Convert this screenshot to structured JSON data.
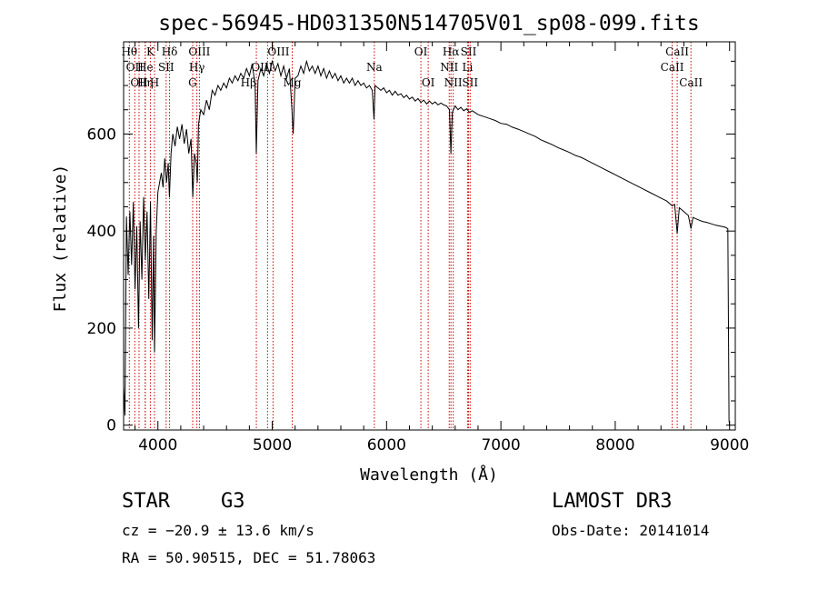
{
  "chart_data": {
    "type": "line",
    "title": "spec-56945-HD031350N514705V01_sp08-099.fits",
    "xlabel": "Wavelength (Å)",
    "ylabel": "Flux (relative)",
    "xlim": [
      3700,
      9050
    ],
    "ylim": [
      -10,
      790
    ],
    "xticks": [
      4000,
      5000,
      6000,
      7000,
      8000,
      9000
    ],
    "yticks": [
      0,
      200,
      400,
      600
    ],
    "x_minor_step": 200,
    "y_minor_step": 50,
    "line_color": "#000000",
    "marker_color": "#cc0000",
    "series": [
      {
        "name": "flux",
        "points": [
          [
            3700,
            80
          ],
          [
            3712,
            20
          ],
          [
            3725,
            430
          ],
          [
            3740,
            310
          ],
          [
            3755,
            440
          ],
          [
            3770,
            330
          ],
          [
            3785,
            460
          ],
          [
            3800,
            280
          ],
          [
            3815,
            410
          ],
          [
            3830,
            200
          ],
          [
            3845,
            420
          ],
          [
            3860,
            300
          ],
          [
            3875,
            470
          ],
          [
            3890,
            340
          ],
          [
            3905,
            440
          ],
          [
            3920,
            260
          ],
          [
            3935,
            460
          ],
          [
            3950,
            175
          ],
          [
            3962,
            390
          ],
          [
            3970,
            150
          ],
          [
            3985,
            400
          ],
          [
            4000,
            480
          ],
          [
            4015,
            500
          ],
          [
            4030,
            520
          ],
          [
            4045,
            490
          ],
          [
            4060,
            550
          ],
          [
            4075,
            500
          ],
          [
            4090,
            540
          ],
          [
            4101,
            470
          ],
          [
            4115,
            560
          ],
          [
            4130,
            600
          ],
          [
            4150,
            575
          ],
          [
            4170,
            615
          ],
          [
            4190,
            590
          ],
          [
            4210,
            620
          ],
          [
            4230,
            580
          ],
          [
            4250,
            610
          ],
          [
            4270,
            560
          ],
          [
            4290,
            590
          ],
          [
            4305,
            470
          ],
          [
            4320,
            560
          ],
          [
            4335,
            540
          ],
          [
            4345,
            500
          ],
          [
            4355,
            620
          ],
          [
            4375,
            650
          ],
          [
            4400,
            640
          ],
          [
            4425,
            670
          ],
          [
            4450,
            650
          ],
          [
            4475,
            690
          ],
          [
            4500,
            680
          ],
          [
            4525,
            700
          ],
          [
            4550,
            690
          ],
          [
            4575,
            705
          ],
          [
            4600,
            695
          ],
          [
            4625,
            715
          ],
          [
            4650,
            705
          ],
          [
            4675,
            720
          ],
          [
            4700,
            710
          ],
          [
            4725,
            725
          ],
          [
            4750,
            715
          ],
          [
            4775,
            735
          ],
          [
            4800,
            720
          ],
          [
            4825,
            745
          ],
          [
            4850,
            700
          ],
          [
            4861,
            560
          ],
          [
            4875,
            710
          ],
          [
            4900,
            735
          ],
          [
            4925,
            720
          ],
          [
            4950,
            745
          ],
          [
            4975,
            725
          ],
          [
            5000,
            750
          ],
          [
            5025,
            730
          ],
          [
            5050,
            745
          ],
          [
            5075,
            720
          ],
          [
            5100,
            740
          ],
          [
            5125,
            715
          ],
          [
            5150,
            735
          ],
          [
            5172,
            650
          ],
          [
            5183,
            600
          ],
          [
            5200,
            715
          ],
          [
            5225,
            720
          ],
          [
            5250,
            740
          ],
          [
            5275,
            725
          ],
          [
            5300,
            750
          ],
          [
            5325,
            730
          ],
          [
            5350,
            740
          ],
          [
            5375,
            725
          ],
          [
            5400,
            740
          ],
          [
            5425,
            720
          ],
          [
            5450,
            735
          ],
          [
            5475,
            715
          ],
          [
            5500,
            730
          ],
          [
            5525,
            715
          ],
          [
            5550,
            725
          ],
          [
            5575,
            710
          ],
          [
            5600,
            720
          ],
          [
            5625,
            705
          ],
          [
            5650,
            715
          ],
          [
            5675,
            705
          ],
          [
            5700,
            715
          ],
          [
            5725,
            700
          ],
          [
            5750,
            710
          ],
          [
            5775,
            700
          ],
          [
            5800,
            705
          ],
          [
            5825,
            695
          ],
          [
            5850,
            700
          ],
          [
            5875,
            690
          ],
          [
            5890,
            630
          ],
          [
            5900,
            700
          ],
          [
            5925,
            695
          ],
          [
            5950,
            690
          ],
          [
            5975,
            695
          ],
          [
            6000,
            685
          ],
          [
            6025,
            690
          ],
          [
            6050,
            680
          ],
          [
            6075,
            688
          ],
          [
            6100,
            680
          ],
          [
            6125,
            683
          ],
          [
            6150,
            675
          ],
          [
            6175,
            680
          ],
          [
            6200,
            672
          ],
          [
            6225,
            676
          ],
          [
            6250,
            668
          ],
          [
            6275,
            673
          ],
          [
            6300,
            665
          ],
          [
            6325,
            670
          ],
          [
            6350,
            662
          ],
          [
            6375,
            668
          ],
          [
            6400,
            662
          ],
          [
            6425,
            666
          ],
          [
            6450,
            660
          ],
          [
            6475,
            664
          ],
          [
            6500,
            660
          ],
          [
            6525,
            658
          ],
          [
            6550,
            650
          ],
          [
            6563,
            560
          ],
          [
            6575,
            645
          ],
          [
            6600,
            658
          ],
          [
            6625,
            650
          ],
          [
            6650,
            655
          ],
          [
            6675,
            648
          ],
          [
            6700,
            652
          ],
          [
            6725,
            645
          ],
          [
            6750,
            648
          ],
          [
            6800,
            640
          ],
          [
            6850,
            636
          ],
          [
            6900,
            632
          ],
          [
            6950,
            628
          ],
          [
            7000,
            622
          ],
          [
            7050,
            620
          ],
          [
            7100,
            614
          ],
          [
            7150,
            610
          ],
          [
            7200,
            605
          ],
          [
            7250,
            600
          ],
          [
            7300,
            595
          ],
          [
            7350,
            588
          ],
          [
            7400,
            583
          ],
          [
            7450,
            578
          ],
          [
            7500,
            572
          ],
          [
            7550,
            567
          ],
          [
            7600,
            562
          ],
          [
            7650,
            556
          ],
          [
            7700,
            552
          ],
          [
            7750,
            546
          ],
          [
            7800,
            540
          ],
          [
            7850,
            534
          ],
          [
            7900,
            528
          ],
          [
            7950,
            522
          ],
          [
            8000,
            516
          ],
          [
            8050,
            510
          ],
          [
            8100,
            504
          ],
          [
            8150,
            498
          ],
          [
            8200,
            492
          ],
          [
            8250,
            486
          ],
          [
            8300,
            480
          ],
          [
            8350,
            474
          ],
          [
            8400,
            468
          ],
          [
            8450,
            462
          ],
          [
            8498,
            452
          ],
          [
            8520,
            455
          ],
          [
            8542,
            395
          ],
          [
            8560,
            448
          ],
          [
            8600,
            440
          ],
          [
            8640,
            432
          ],
          [
            8662,
            405
          ],
          [
            8680,
            428
          ],
          [
            8720,
            424
          ],
          [
            8760,
            420
          ],
          [
            8800,
            418
          ],
          [
            8840,
            415
          ],
          [
            8880,
            412
          ],
          [
            8920,
            410
          ],
          [
            8960,
            408
          ],
          [
            8985,
            405
          ],
          [
            8990,
            200
          ],
          [
            8995,
            10
          ],
          [
            9000,
            0
          ]
        ]
      }
    ],
    "line_markers": [
      {
        "x": 3750,
        "text": "Hθ",
        "row": 1,
        "pos": "center"
      },
      {
        "x": 3798,
        "text": "OII",
        "row": 2,
        "pos": "center"
      },
      {
        "x": 3835,
        "text": "OII",
        "row": 3,
        "pos": "center"
      },
      {
        "x": 3889,
        "text": "He",
        "row": 2,
        "pos": "center"
      },
      {
        "x": 3889,
        "text": "Hη",
        "row": 3,
        "pos": "center"
      },
      {
        "x": 3934,
        "text": "K",
        "row": 1,
        "pos": "center"
      },
      {
        "x": 3970,
        "text": "H",
        "row": 3,
        "pos": "center"
      },
      {
        "x": 4072,
        "text": "SII",
        "row": 2,
        "pos": "center"
      },
      {
        "x": 4102,
        "text": "Hδ",
        "row": 1,
        "pos": "center"
      },
      {
        "x": 4304,
        "text": "G",
        "row": 3,
        "pos": "center"
      },
      {
        "x": 4341,
        "text": "Hγ",
        "row": 2,
        "pos": "center"
      },
      {
        "x": 4363,
        "text": "OIII",
        "row": 1,
        "pos": "center"
      },
      {
        "x": 4861,
        "text": "Hβ",
        "row": 3,
        "pos": "left"
      },
      {
        "x": 4959,
        "text": "OIII",
        "row": 1,
        "pos": "right"
      },
      {
        "x": 5007,
        "text": "OIII",
        "row": 2,
        "pos": "left"
      },
      {
        "x": 5175,
        "text": "Mg",
        "row": 3,
        "pos": "center"
      },
      {
        "x": 5893,
        "text": "Na",
        "row": 2,
        "pos": "center"
      },
      {
        "x": 6300,
        "text": "OI",
        "row": 1,
        "pos": "center"
      },
      {
        "x": 6364,
        "text": "OI",
        "row": 3,
        "pos": "center"
      },
      {
        "x": 6548,
        "text": "NII",
        "row": 2,
        "pos": "center"
      },
      {
        "x": 6563,
        "text": "Hα",
        "row": 1,
        "pos": "center"
      },
      {
        "x": 6583,
        "text": "NII",
        "row": 3,
        "pos": "center"
      },
      {
        "x": 6708,
        "text": "Li",
        "row": 2,
        "pos": "center"
      },
      {
        "x": 6717,
        "text": "SII",
        "row": 1,
        "pos": "center"
      },
      {
        "x": 6731,
        "text": "SII",
        "row": 3,
        "pos": "center"
      },
      {
        "x": 8498,
        "text": "CaII",
        "row": 2,
        "pos": "center"
      },
      {
        "x": 8542,
        "text": "CaII",
        "row": 1,
        "pos": "center"
      },
      {
        "x": 8662,
        "text": "CaII",
        "row": 3,
        "pos": "center"
      }
    ]
  },
  "info": {
    "object_class": "STAR",
    "subclass": "G3",
    "survey": "LAMOST DR3",
    "cz": "cz = −20.9 ± 13.6 km/s",
    "obs_date": "Obs-Date: 20141014",
    "coords": "RA =  50.90515, DEC =  51.78063"
  }
}
